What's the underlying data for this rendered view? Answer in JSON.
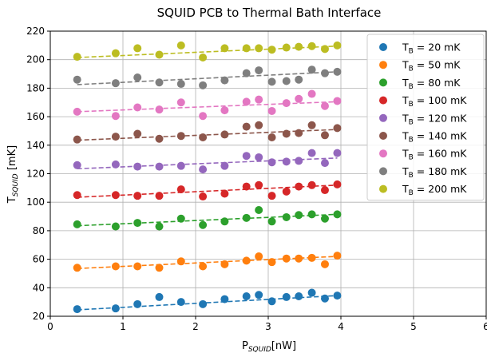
{
  "chart_data": {
    "type": "scatter",
    "title": "SQUID PCB to Thermal Bath Interface",
    "xlabel": {
      "main": "P",
      "sub": "SQUID",
      "tail": "[nW]"
    },
    "ylabel": {
      "main": "T",
      "sub": "SQUID",
      "tail": " [mK]"
    },
    "xlim": [
      0,
      6
    ],
    "ylim": [
      20,
      220
    ],
    "xticks": [
      "0",
      "1",
      "2",
      "3",
      "4",
      "5",
      "6"
    ],
    "yticks": [
      "20",
      "40",
      "60",
      "80",
      "100",
      "120",
      "140",
      "160",
      "180",
      "200",
      "220"
    ],
    "grid": true,
    "legend_position": "top-right",
    "x": [
      0.37,
      0.9,
      1.2,
      1.5,
      1.8,
      2.1,
      2.4,
      2.7,
      2.87,
      3.05,
      3.25,
      3.42,
      3.6,
      3.78,
      3.95
    ],
    "series": [
      {
        "name_prefix": "T",
        "name_sub": "B",
        "name_suffix": " = 20 mK",
        "color": "#1f77b4",
        "values": [
          25,
          25.5,
          28.5,
          33.5,
          30,
          28.5,
          32,
          34,
          35,
          30.5,
          33.5,
          34,
          36.5,
          32.5,
          34.5
        ],
        "fit": [
          24.5,
          34.5
        ]
      },
      {
        "name_prefix": "T",
        "name_sub": "B",
        "name_suffix": " = 50 mK",
        "color": "#ff7f0e",
        "values": [
          54,
          55,
          55,
          54,
          58.5,
          55,
          56.5,
          59,
          62,
          58,
          60.5,
          60.5,
          61,
          56.5,
          62.5
        ],
        "fit": [
          53.5,
          62
        ]
      },
      {
        "name_prefix": "T",
        "name_sub": "B",
        "name_suffix": " = 80 mK",
        "color": "#2ca02c",
        "values": [
          84.5,
          83,
          85.5,
          83,
          88.5,
          84,
          86.5,
          89,
          94.5,
          86.5,
          89.5,
          91,
          91.5,
          88.5,
          91.5
        ],
        "fit": [
          83.5,
          91.5
        ]
      },
      {
        "name_prefix": "T",
        "name_sub": "B",
        "name_suffix": " = 100 mK",
        "color": "#d62728",
        "values": [
          105,
          105,
          104.5,
          104.5,
          109,
          104,
          106,
          111,
          112,
          104.5,
          107.5,
          111,
          112,
          108.5,
          112.5
        ],
        "fit": [
          103.5,
          112
        ]
      },
      {
        "name_prefix": "T",
        "name_sub": "B",
        "name_suffix": " = 120 mK",
        "color": "#9467bd",
        "values": [
          126,
          126.5,
          125,
          125,
          125.5,
          123,
          125.5,
          132.5,
          131.5,
          128,
          128.5,
          129,
          134.5,
          127.5,
          134.5
        ],
        "fit": [
          123.5,
          131
        ]
      },
      {
        "name_prefix": "T",
        "name_sub": "B",
        "name_suffix": " = 140 mK",
        "color": "#8c564b",
        "values": [
          144,
          146,
          148,
          144.5,
          146.5,
          145.5,
          147.5,
          153,
          154,
          145.5,
          148,
          148.5,
          154,
          147,
          152
        ],
        "fit": [
          143.5,
          151
        ]
      },
      {
        "name_prefix": "T",
        "name_sub": "B",
        "name_suffix": " = 160 mK",
        "color": "#e377c2",
        "values": [
          163.5,
          160.5,
          166.5,
          165,
          170,
          160.5,
          164.5,
          170.5,
          172,
          164,
          169.5,
          172.5,
          176,
          167.5,
          171
        ],
        "fit": [
          163.5,
          170.5
        ]
      },
      {
        "name_prefix": "T",
        "name_sub": "B",
        "name_suffix": " = 180 mK",
        "color": "#7f7f7f",
        "values": [
          186,
          183.5,
          187.5,
          184,
          183,
          182,
          185.5,
          190.5,
          192.5,
          184.5,
          185,
          186,
          193,
          190.5,
          191.5
        ],
        "fit": [
          182.5,
          191.5
        ]
      },
      {
        "name_prefix": "T",
        "name_sub": "B",
        "name_suffix": " = 200 mK",
        "color": "#bcbd22",
        "values": [
          202,
          204.5,
          208,
          203.5,
          210,
          201.5,
          208,
          208,
          208,
          207,
          208.5,
          209,
          209.5,
          207.5,
          210
        ],
        "fit": [
          201.5,
          209.5
        ]
      }
    ]
  }
}
